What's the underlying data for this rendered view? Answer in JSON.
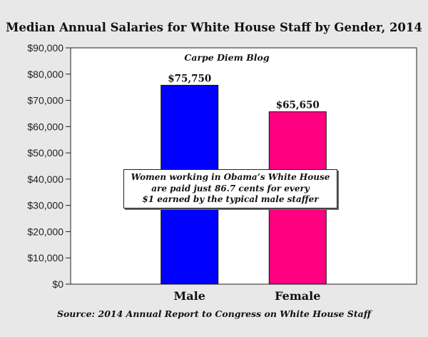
{
  "chart_data": {
    "type": "bar",
    "title": "Median Annual Salaries for White House Staff by Gender, 2014",
    "categories": [
      "Male",
      "Female"
    ],
    "values": [
      75750,
      65650
    ],
    "value_labels": [
      "$75,750",
      "$65,650"
    ],
    "colors": [
      "#0000ff",
      "#ff0080"
    ],
    "ylim": [
      0,
      90000
    ],
    "yticks": [
      0,
      10000,
      20000,
      30000,
      40000,
      50000,
      60000,
      70000,
      80000,
      90000
    ],
    "ytick_labels": [
      "$0",
      "$10,000",
      "$20,000",
      "$30,000",
      "$40,000",
      "$50,000",
      "$60,000",
      "$70,000",
      "$80,000",
      "$90,000"
    ],
    "grid": false,
    "xlabel": "",
    "ylabel": "",
    "watermark": "Carpe Diem Blog",
    "annotation": [
      "Women working in Obama’s White House",
      "are paid just 86.7 cents for every",
      "$1 earned by the typical male staffer"
    ],
    "source": "Source: 2014 Annual Report to Congress on White House Staff"
  }
}
